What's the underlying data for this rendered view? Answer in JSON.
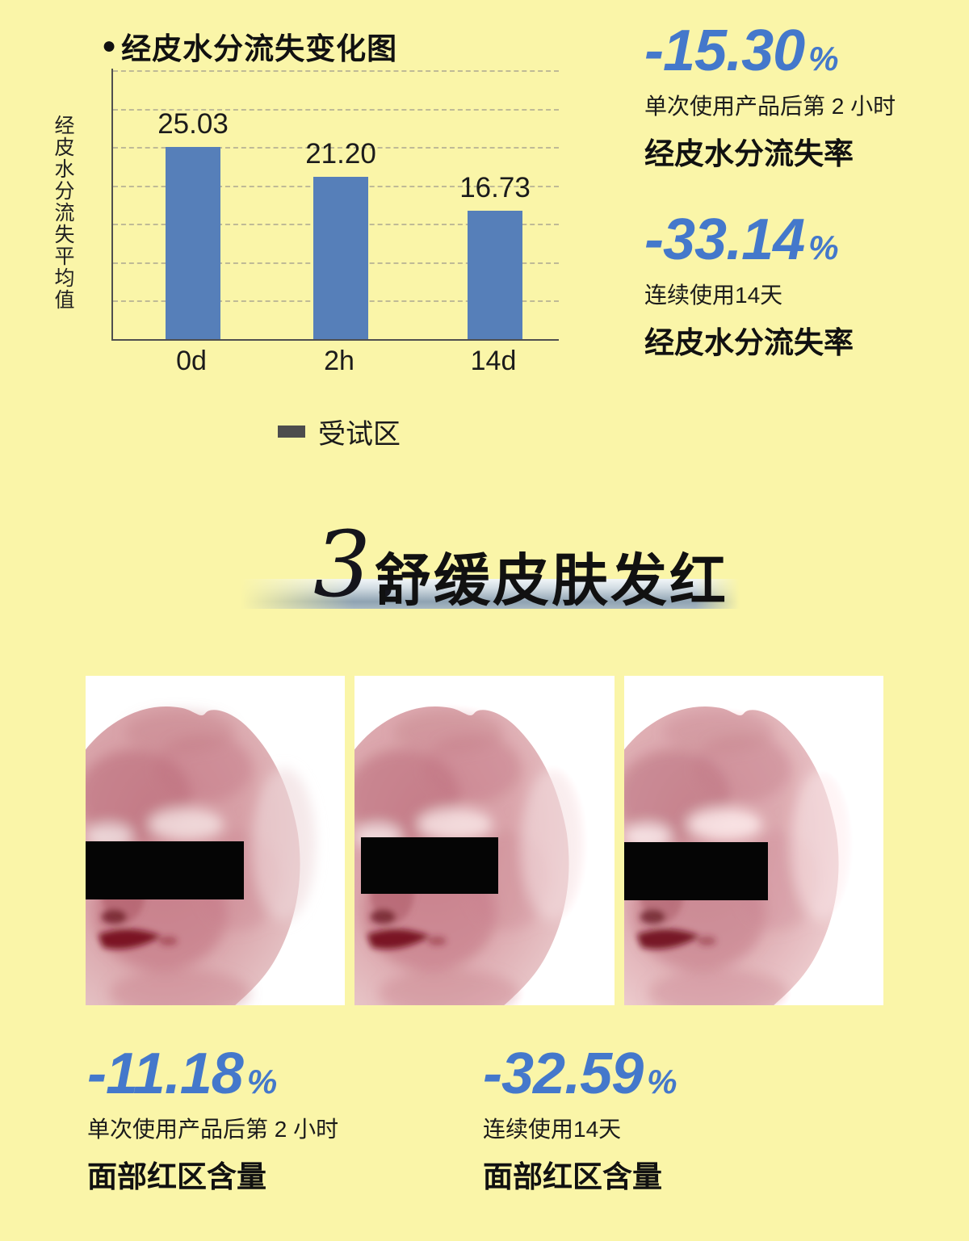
{
  "page_background": "#FAF5A8",
  "chart_data": {
    "type": "bar",
    "bullet": "●",
    "title": "经皮水分流失变化图",
    "ylabel": "经皮水分流失平均值",
    "xlabel": "",
    "categories": [
      "0d",
      "2h",
      "14d"
    ],
    "values": [
      25.03,
      21.2,
      16.73
    ],
    "value_labels": [
      "25.03",
      "21.20",
      "16.73"
    ],
    "series_name": "受试区",
    "ylim": [
      0,
      35
    ],
    "grid": "dashed horizontal lines every 5 units",
    "legend_position": "bottom-center",
    "bar_color": "#567FB9",
    "legend_marker_color": "#4D4D4D"
  },
  "stats": {
    "number_color": "#4478CB",
    "top": [
      {
        "value": "-15.30",
        "percent": "%",
        "line1": "单次使用产品后第 2 小时",
        "line2": "经皮水分流失率"
      },
      {
        "value": "-33.14",
        "percent": "%",
        "line1": "连续使用14天",
        "line2": "经皮水分流失率"
      }
    ],
    "bottom": [
      {
        "value": "-11.18",
        "percent": "%",
        "line1": "单次使用产品后第 2 小时",
        "line2": "面部红区含量"
      },
      {
        "value": "-32.59",
        "percent": "%",
        "line1": "连续使用14天",
        "line2": "面部红区含量"
      }
    ]
  },
  "section": {
    "number": "3.",
    "title": "舒缓皮肤发红"
  },
  "faces": {
    "count": 3
  }
}
